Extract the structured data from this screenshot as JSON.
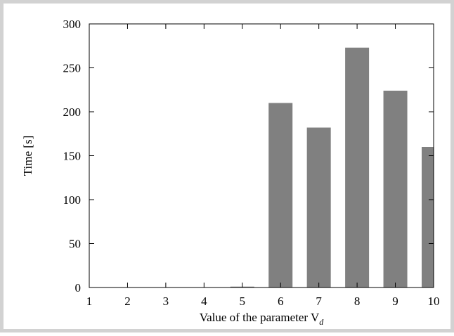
{
  "chart_data": {
    "type": "bar",
    "categories": [
      "1",
      "2",
      "3",
      "4",
      "5",
      "6",
      "7",
      "8",
      "9",
      "10"
    ],
    "values": [
      0,
      0,
      0,
      0,
      1,
      210,
      182,
      273,
      224,
      160
    ],
    "xlabel": "Value of the parameter V",
    "xlabel_subscript": "d",
    "ylabel": "Time [s]",
    "ylim": [
      0,
      300
    ],
    "yticks": [
      0,
      50,
      100,
      150,
      200,
      250,
      300
    ],
    "grid": false,
    "legend": "none",
    "colors": {
      "bar": "#808080",
      "axis": "#000000",
      "frame": "#d2d2d2"
    }
  }
}
